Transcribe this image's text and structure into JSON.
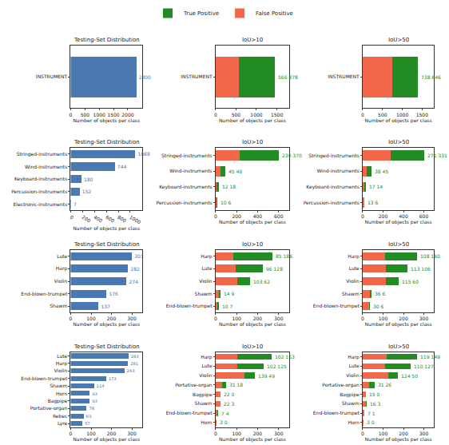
{
  "chart_data": [
    {
      "type": "bar",
      "orientation": "horizontal",
      "title": "Testing-Set Distribution",
      "x_label": "Number of objects per class",
      "categories": [
        "INSTRUMENT"
      ],
      "values": [
        2300
      ],
      "color": "#4a78b0",
      "data_labels": true,
      "xlim": [
        0,
        2500
      ],
      "xticks": [
        0,
        500,
        1000,
        1500,
        2000
      ]
    },
    {
      "type": "bar",
      "orientation": "horizontal",
      "stacked": true,
      "title": "IoU>10",
      "x_label": "Number of objects per class",
      "categories": [
        "INSTRUMENT"
      ],
      "series": [
        {
          "name": "False Positive",
          "color": "#f0674a",
          "values": [
            566
          ]
        },
        {
          "name": "True Positive",
          "color": "#238b23",
          "values": [
            878
          ]
        }
      ],
      "bar_labels": [
        "566 878"
      ],
      "legend": "top",
      "xlim": [
        0,
        1800
      ],
      "xticks": [
        0,
        500,
        1000,
        1500
      ]
    },
    {
      "type": "bar",
      "orientation": "horizontal",
      "stacked": true,
      "title": "IoU>50",
      "x_label": "Number of objects per class",
      "categories": [
        "INSTRUMENT"
      ],
      "series": [
        {
          "name": "False Positive",
          "color": "#f0674a",
          "values": [
            738
          ]
        },
        {
          "name": "True Positive",
          "color": "#238b23",
          "values": [
            646
          ]
        }
      ],
      "bar_labels": [
        "738 646"
      ],
      "legend": "top",
      "xlim": [
        0,
        1800
      ],
      "xticks": [
        0,
        500,
        1000,
        1500
      ]
    },
    {
      "type": "bar",
      "orientation": "horizontal",
      "title": "Testing-Set Distribution",
      "x_label": "Number of objects per class",
      "categories": [
        "Stringed-instruments",
        "Wind-instruments",
        "Keyboard-instruments",
        "Percussion-instruments",
        "Electronic-instruments"
      ],
      "values": [
        1088,
        744,
        180,
        152,
        7
      ],
      "color": "#4a78b0",
      "data_labels": true,
      "xlim": [
        0,
        1200
      ],
      "xticks": [
        0,
        200,
        400,
        600,
        800,
        1000
      ]
    },
    {
      "type": "bar",
      "orientation": "horizontal",
      "stacked": true,
      "title": "IoU>10",
      "x_label": "Number of objects per class",
      "categories": [
        "Stringed-instruments",
        "Wind-instruments",
        "Keyboard-instruments",
        "Percussion-instruments"
      ],
      "series": [
        {
          "name": "False Positive",
          "color": "#f0674a",
          "values": [
            230,
            45,
            12,
            10
          ]
        },
        {
          "name": "True Positive",
          "color": "#238b23",
          "values": [
            370,
            49,
            18,
            6
          ]
        }
      ],
      "bar_labels": [
        "230 370",
        "45 49",
        "12 18",
        "10 6"
      ],
      "legend": "top",
      "xlim": [
        0,
        700
      ],
      "xticks": [
        0,
        200,
        400,
        600
      ]
    },
    {
      "type": "bar",
      "orientation": "horizontal",
      "stacked": true,
      "title": "IoU>50",
      "x_label": "Number of objects per class",
      "categories": [
        "Stringed-instruments",
        "Wind-instruments",
        "Keyboard-instruments",
        "Percussion-instruments"
      ],
      "series": [
        {
          "name": "False Positive",
          "color": "#f0674a",
          "values": [
            271,
            38,
            17,
            13
          ]
        },
        {
          "name": "True Positive",
          "color": "#238b23",
          "values": [
            331,
            45,
            14,
            6
          ]
        }
      ],
      "bar_labels": [
        "271 331",
        "38 45",
        "17 14",
        "13 6"
      ],
      "legend": "top",
      "xlim": [
        0,
        700
      ],
      "xticks": [
        0,
        200,
        400,
        600
      ]
    },
    {
      "type": "bar",
      "orientation": "horizontal",
      "title": "Testing-Set Distribution",
      "x_label": "Number of objects per class",
      "categories": [
        "Lute",
        "Harp",
        "Violin",
        "End-blown-trumpet",
        "Shawm"
      ],
      "values": [
        301,
        282,
        274,
        176,
        137
      ],
      "color": "#4a78b0",
      "data_labels": true,
      "xlim": [
        0,
        350
      ],
      "xticks": [
        0,
        100,
        200,
        300
      ]
    },
    {
      "type": "bar",
      "orientation": "horizontal",
      "stacked": true,
      "title": "IoU>10",
      "x_label": "Number of objects per class",
      "categories": [
        "Harp",
        "Lute",
        "Violin",
        "Shawm",
        "End-blown-trumpet"
      ],
      "series": [
        {
          "name": "False Positive",
          "color": "#f0674a",
          "values": [
            85,
            96,
            103,
            14,
            10
          ]
        },
        {
          "name": "True Positive",
          "color": "#238b23",
          "values": [
            186,
            128,
            62,
            9,
            7
          ]
        }
      ],
      "bar_labels": [
        "85 186",
        "96 128",
        "103 62",
        "14 9",
        "10 7"
      ],
      "legend": "top",
      "xlim": [
        0,
        350
      ],
      "xticks": [
        0,
        100,
        200,
        300
      ]
    },
    {
      "type": "bar",
      "orientation": "horizontal",
      "stacked": true,
      "title": "IoU>50",
      "x_label": "Number of objects per class",
      "categories": [
        "Harp",
        "Lute",
        "Violin",
        "Shawm",
        "End-blown-trumpet"
      ],
      "series": [
        {
          "name": "False Positive",
          "color": "#f0674a",
          "values": [
            108,
            113,
            115,
            36,
            30
          ]
        },
        {
          "name": "True Positive",
          "color": "#238b23",
          "values": [
            160,
            106,
            60,
            6,
            6
          ]
        }
      ],
      "bar_labels": [
        "108 160",
        "113 106",
        "115 60",
        "36 6",
        "30 6"
      ],
      "legend": "top",
      "xlim": [
        0,
        350
      ],
      "xticks": [
        0,
        100,
        200,
        300
      ]
    },
    {
      "type": "bar",
      "orientation": "horizontal",
      "title": "Testing-Set Distribution",
      "x_label": "Number of objects per class",
      "categories": [
        "Lute",
        "Harp",
        "Violin",
        "End-blown-trumpet",
        "Shawm",
        "Horn",
        "Bagpipe",
        "Portative-organ",
        "Rebec",
        "Lyre"
      ],
      "values": [
        283,
        281,
        263,
        173,
        114,
        93,
        93,
        78,
        63,
        57
      ],
      "color": "#4a78b0",
      "data_labels": true,
      "xlim": [
        0,
        350
      ],
      "xticks": [
        0,
        100,
        200,
        300
      ]
    },
    {
      "type": "bar",
      "orientation": "horizontal",
      "stacked": true,
      "title": "IoU>10",
      "x_label": "Number of objects per class",
      "categories": [
        "Harp",
        "Lute",
        "Violin",
        "Portative-organ",
        "Bagpipe",
        "Shawm",
        "End-blown-trumpet",
        "Horn"
      ],
      "series": [
        {
          "name": "False Positive",
          "color": "#f0674a",
          "values": [
            102,
            102,
            139,
            31,
            22,
            22,
            7,
            3
          ]
        },
        {
          "name": "True Positive",
          "color": "#238b23",
          "values": [
            163,
            125,
            49,
            18,
            0,
            3,
            4,
            0
          ]
        }
      ],
      "bar_labels": [
        "102 163",
        "102 125",
        "139 49",
        "31 18",
        "22 0",
        "22 3",
        "7 4",
        "3 0"
      ],
      "legend": "top",
      "xlim": [
        0,
        350
      ],
      "xticks": [
        0,
        100,
        200,
        300
      ]
    },
    {
      "type": "bar",
      "orientation": "horizontal",
      "stacked": true,
      "title": "IoU>50",
      "x_label": "Number of objects per class",
      "categories": [
        "Harp",
        "Lute",
        "Violin",
        "Portative-organ",
        "Bagpipe",
        "Shawm",
        "End-blown-trumpet",
        "Horn"
      ],
      "series": [
        {
          "name": "False Positive",
          "color": "#f0674a",
          "values": [
            119,
            110,
            124,
            31,
            15,
            16,
            7,
            3
          ]
        },
        {
          "name": "True Positive",
          "color": "#238b23",
          "values": [
            149,
            127,
            50,
            26,
            0,
            3,
            1,
            0
          ]
        }
      ],
      "bar_labels": [
        "119 149",
        "110 127",
        "124 50",
        "31 26",
        "15 0",
        "16 3",
        "7 1",
        "3 0"
      ],
      "legend": "top",
      "xlim": [
        0,
        350
      ],
      "xticks": [
        0,
        100,
        200,
        300
      ]
    }
  ]
}
